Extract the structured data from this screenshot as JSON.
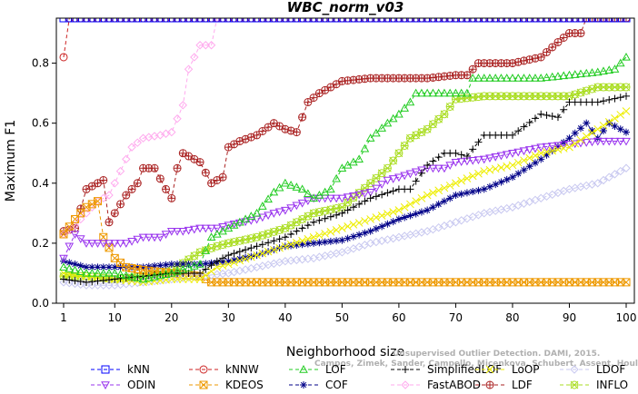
{
  "chart_data": {
    "type": "line",
    "title": "WBC_norm_v03",
    "xlabel": "Neighborhood size",
    "ylabel": "Maximum F1",
    "xlim": [
      1,
      100
    ],
    "ylim": [
      0,
      0.95
    ],
    "x_ticks": [
      "1",
      "10",
      "20",
      "30",
      "40",
      "50",
      "60",
      "70",
      "80",
      "90",
      "100"
    ],
    "y_ticks": [
      "0.0",
      "0.2",
      "0.4",
      "0.6",
      "0.8"
    ],
    "legend_position": "bottom",
    "watermark": [
      "Unsupervised Outlier Detection. DAMI, 2015.",
      "Campos, Zimek, Sander, Campello, Micenkova, Schubert, Assent, Houle"
    ],
    "series": [
      {
        "name": "kNN",
        "color": "#0000ff",
        "marker": "square",
        "points": [
          [
            1,
            0.95
          ],
          [
            100,
            0.95
          ]
        ]
      },
      {
        "name": "kNNW",
        "color": "#cc2222",
        "marker": "circle",
        "points": [
          [
            1,
            0.82
          ],
          [
            2,
            0.95
          ],
          [
            100,
            0.95
          ]
        ]
      },
      {
        "name": "LOF",
        "color": "#22cc22",
        "marker": "triangle-up",
        "points": [
          [
            1,
            0.12
          ],
          [
            5,
            0.1
          ],
          [
            10,
            0.1
          ],
          [
            15,
            0.08
          ],
          [
            20,
            0.1
          ],
          [
            25,
            0.13
          ],
          [
            27,
            0.22
          ],
          [
            30,
            0.25
          ],
          [
            35,
            0.3
          ],
          [
            38,
            0.37
          ],
          [
            40,
            0.4
          ],
          [
            43,
            0.38
          ],
          [
            45,
            0.35
          ],
          [
            48,
            0.38
          ],
          [
            50,
            0.45
          ],
          [
            53,
            0.48
          ],
          [
            55,
            0.55
          ],
          [
            58,
            0.6
          ],
          [
            60,
            0.63
          ],
          [
            62,
            0.67
          ],
          [
            63,
            0.7
          ],
          [
            70,
            0.7
          ],
          [
            72,
            0.7
          ],
          [
            73,
            0.75
          ],
          [
            80,
            0.75
          ],
          [
            85,
            0.75
          ],
          [
            90,
            0.76
          ],
          [
            95,
            0.77
          ],
          [
            98,
            0.78
          ],
          [
            100,
            0.82
          ]
        ]
      },
      {
        "name": "SimplifiedLOF",
        "color": "#000000",
        "marker": "plus",
        "points": [
          [
            1,
            0.08
          ],
          [
            5,
            0.07
          ],
          [
            10,
            0.08
          ],
          [
            15,
            0.09
          ],
          [
            20,
            0.1
          ],
          [
            25,
            0.1
          ],
          [
            28,
            0.14
          ],
          [
            30,
            0.16
          ],
          [
            35,
            0.19
          ],
          [
            40,
            0.22
          ],
          [
            45,
            0.27
          ],
          [
            50,
            0.3
          ],
          [
            55,
            0.35
          ],
          [
            60,
            0.38
          ],
          [
            62,
            0.38
          ],
          [
            65,
            0.46
          ],
          [
            68,
            0.5
          ],
          [
            70,
            0.5
          ],
          [
            72,
            0.49
          ],
          [
            75,
            0.56
          ],
          [
            80,
            0.56
          ],
          [
            85,
            0.63
          ],
          [
            88,
            0.62
          ],
          [
            90,
            0.67
          ],
          [
            95,
            0.67
          ],
          [
            100,
            0.69
          ]
        ]
      },
      {
        "name": "LoOP",
        "color": "#eeee00",
        "marker": "cross",
        "points": [
          [
            1,
            0.1
          ],
          [
            5,
            0.09
          ],
          [
            10,
            0.08
          ],
          [
            15,
            0.07
          ],
          [
            20,
            0.08
          ],
          [
            25,
            0.08
          ],
          [
            28,
            0.12
          ],
          [
            30,
            0.13
          ],
          [
            35,
            0.16
          ],
          [
            40,
            0.19
          ],
          [
            45,
            0.22
          ],
          [
            50,
            0.25
          ],
          [
            55,
            0.28
          ],
          [
            60,
            0.31
          ],
          [
            65,
            0.36
          ],
          [
            70,
            0.4
          ],
          [
            75,
            0.44
          ],
          [
            80,
            0.46
          ],
          [
            85,
            0.5
          ],
          [
            90,
            0.52
          ],
          [
            95,
            0.58
          ],
          [
            100,
            0.64
          ]
        ]
      },
      {
        "name": "LDOF",
        "color": "#c8c8f0",
        "marker": "diamond",
        "points": [
          [
            1,
            0.07
          ],
          [
            5,
            0.06
          ],
          [
            10,
            0.06
          ],
          [
            15,
            0.07
          ],
          [
            20,
            0.08
          ],
          [
            25,
            0.09
          ],
          [
            30,
            0.1
          ],
          [
            35,
            0.12
          ],
          [
            40,
            0.14
          ],
          [
            45,
            0.15
          ],
          [
            50,
            0.17
          ],
          [
            55,
            0.2
          ],
          [
            60,
            0.22
          ],
          [
            65,
            0.24
          ],
          [
            70,
            0.27
          ],
          [
            75,
            0.3
          ],
          [
            80,
            0.32
          ],
          [
            85,
            0.35
          ],
          [
            90,
            0.38
          ],
          [
            95,
            0.4
          ],
          [
            100,
            0.45
          ]
        ]
      },
      {
        "name": "ODIN",
        "color": "#9933ee",
        "marker": "triangle-down",
        "points": [
          [
            1,
            0.15
          ],
          [
            3,
            0.23
          ],
          [
            5,
            0.2
          ],
          [
            8,
            0.2
          ],
          [
            10,
            0.2
          ],
          [
            12,
            0.2
          ],
          [
            15,
            0.22
          ],
          [
            18,
            0.22
          ],
          [
            20,
            0.24
          ],
          [
            22,
            0.24
          ],
          [
            25,
            0.25
          ],
          [
            28,
            0.25
          ],
          [
            30,
            0.26
          ],
          [
            35,
            0.28
          ],
          [
            38,
            0.3
          ],
          [
            40,
            0.31
          ],
          [
            45,
            0.35
          ],
          [
            50,
            0.35
          ],
          [
            55,
            0.37
          ],
          [
            58,
            0.41
          ],
          [
            60,
            0.42
          ],
          [
            65,
            0.45
          ],
          [
            68,
            0.45
          ],
          [
            70,
            0.47
          ],
          [
            75,
            0.48
          ],
          [
            80,
            0.5
          ],
          [
            85,
            0.52
          ],
          [
            90,
            0.53
          ],
          [
            95,
            0.54
          ],
          [
            100,
            0.54
          ]
        ]
      },
      {
        "name": "KDEOS",
        "color": "#ee9900",
        "marker": "square-x",
        "points": [
          [
            1,
            0.23
          ],
          [
            3,
            0.28
          ],
          [
            5,
            0.32
          ],
          [
            7,
            0.34
          ],
          [
            8,
            0.22
          ],
          [
            10,
            0.15
          ],
          [
            12,
            0.12
          ],
          [
            15,
            0.11
          ],
          [
            20,
            0.1
          ],
          [
            25,
            0.09
          ],
          [
            27,
            0.07
          ],
          [
            30,
            0.07
          ],
          [
            40,
            0.07
          ],
          [
            50,
            0.07
          ],
          [
            60,
            0.07
          ],
          [
            70,
            0.07
          ],
          [
            80,
            0.07
          ],
          [
            90,
            0.07
          ],
          [
            100,
            0.07
          ]
        ]
      },
      {
        "name": "COF",
        "color": "#000088",
        "marker": "star",
        "points": [
          [
            1,
            0.14
          ],
          [
            5,
            0.12
          ],
          [
            10,
            0.12
          ],
          [
            15,
            0.12
          ],
          [
            20,
            0.13
          ],
          [
            25,
            0.13
          ],
          [
            30,
            0.14
          ],
          [
            35,
            0.16
          ],
          [
            40,
            0.19
          ],
          [
            45,
            0.2
          ],
          [
            50,
            0.21
          ],
          [
            55,
            0.24
          ],
          [
            60,
            0.28
          ],
          [
            65,
            0.31
          ],
          [
            70,
            0.36
          ],
          [
            75,
            0.38
          ],
          [
            80,
            0.42
          ],
          [
            85,
            0.48
          ],
          [
            90,
            0.55
          ],
          [
            93,
            0.6
          ],
          [
            95,
            0.55
          ],
          [
            97,
            0.6
          ],
          [
            100,
            0.57
          ]
        ]
      },
      {
        "name": "FastABOD",
        "color": "#ffaaee",
        "marker": "diamond",
        "points": [
          [
            1,
            0.23
          ],
          [
            3,
            0.26
          ],
          [
            5,
            0.3
          ],
          [
            7,
            0.34
          ],
          [
            9,
            0.36
          ],
          [
            10,
            0.4
          ],
          [
            12,
            0.48
          ],
          [
            13,
            0.52
          ],
          [
            15,
            0.55
          ],
          [
            18,
            0.56
          ],
          [
            20,
            0.57
          ],
          [
            22,
            0.66
          ],
          [
            23,
            0.78
          ],
          [
            25,
            0.86
          ],
          [
            27,
            0.86
          ],
          [
            28,
            0.95
          ]
        ]
      },
      {
        "name": "LDF",
        "color": "#aa2222",
        "marker": "circle-plus",
        "points": [
          [
            1,
            0.24
          ],
          [
            3,
            0.25
          ],
          [
            5,
            0.38
          ],
          [
            7,
            0.4
          ],
          [
            8,
            0.41
          ],
          [
            9,
            0.27
          ],
          [
            10,
            0.3
          ],
          [
            12,
            0.36
          ],
          [
            14,
            0.4
          ],
          [
            15,
            0.45
          ],
          [
            17,
            0.45
          ],
          [
            19,
            0.38
          ],
          [
            20,
            0.35
          ],
          [
            21,
            0.45
          ],
          [
            22,
            0.5
          ],
          [
            25,
            0.47
          ],
          [
            27,
            0.4
          ],
          [
            29,
            0.42
          ],
          [
            30,
            0.52
          ],
          [
            32,
            0.54
          ],
          [
            35,
            0.56
          ],
          [
            38,
            0.6
          ],
          [
            40,
            0.58
          ],
          [
            42,
            0.57
          ],
          [
            44,
            0.67
          ],
          [
            46,
            0.7
          ],
          [
            50,
            0.74
          ],
          [
            55,
            0.75
          ],
          [
            60,
            0.75
          ],
          [
            65,
            0.75
          ],
          [
            70,
            0.76
          ],
          [
            72,
            0.76
          ],
          [
            74,
            0.8
          ],
          [
            80,
            0.8
          ],
          [
            85,
            0.82
          ],
          [
            88,
            0.87
          ],
          [
            90,
            0.9
          ],
          [
            92,
            0.9
          ],
          [
            93,
            0.95
          ],
          [
            100,
            0.95
          ]
        ]
      },
      {
        "name": "INFLO",
        "color": "#aadd22",
        "marker": "circle-star",
        "points": [
          [
            1,
            0.09
          ],
          [
            5,
            0.09
          ],
          [
            10,
            0.08
          ],
          [
            15,
            0.09
          ],
          [
            20,
            0.11
          ],
          [
            25,
            0.17
          ],
          [
            28,
            0.19
          ],
          [
            30,
            0.2
          ],
          [
            35,
            0.22
          ],
          [
            40,
            0.25
          ],
          [
            45,
            0.3
          ],
          [
            50,
            0.32
          ],
          [
            55,
            0.4
          ],
          [
            58,
            0.45
          ],
          [
            60,
            0.5
          ],
          [
            62,
            0.55
          ],
          [
            65,
            0.58
          ],
          [
            68,
            0.63
          ],
          [
            70,
            0.68
          ],
          [
            75,
            0.69
          ],
          [
            80,
            0.69
          ],
          [
            85,
            0.69
          ],
          [
            90,
            0.69
          ],
          [
            95,
            0.72
          ],
          [
            100,
            0.72
          ]
        ]
      }
    ]
  }
}
